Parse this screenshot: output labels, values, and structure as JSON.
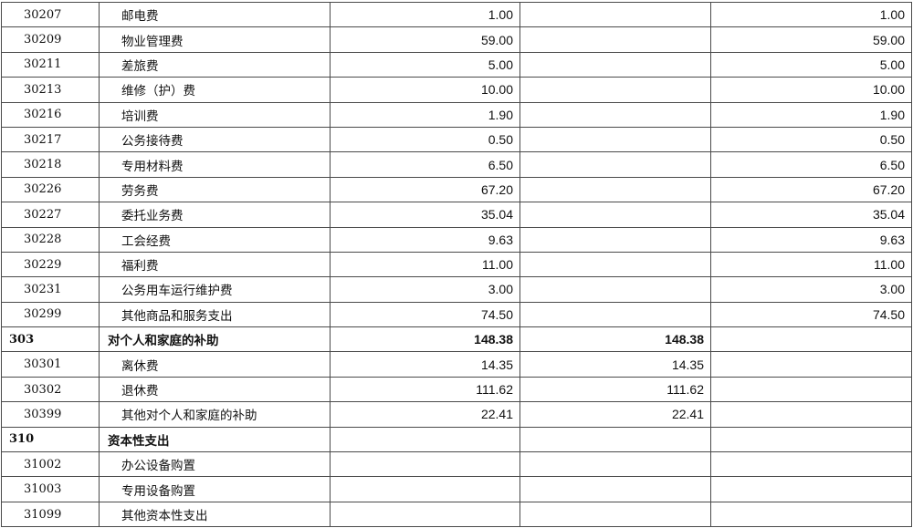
{
  "rows": [
    {
      "code": "30207",
      "name": "邮电费",
      "c3": "1.00",
      "c4": "",
      "c5": "1.00",
      "bold": false
    },
    {
      "code": "30209",
      "name": "物业管理费",
      "c3": "59.00",
      "c4": "",
      "c5": "59.00",
      "bold": false
    },
    {
      "code": "30211",
      "name": "差旅费",
      "c3": "5.00",
      "c4": "",
      "c5": "5.00",
      "bold": false
    },
    {
      "code": "30213",
      "name": "维修（护）费",
      "c3": "10.00",
      "c4": "",
      "c5": "10.00",
      "bold": false
    },
    {
      "code": "30216",
      "name": "培训费",
      "c3": "1.90",
      "c4": "",
      "c5": "1.90",
      "bold": false
    },
    {
      "code": "30217",
      "name": "公务接待费",
      "c3": "0.50",
      "c4": "",
      "c5": "0.50",
      "bold": false
    },
    {
      "code": "30218",
      "name": "专用材料费",
      "c3": "6.50",
      "c4": "",
      "c5": "6.50",
      "bold": false
    },
    {
      "code": "30226",
      "name": "劳务费",
      "c3": "67.20",
      "c4": "",
      "c5": "67.20",
      "bold": false
    },
    {
      "code": "30227",
      "name": "委托业务费",
      "c3": "35.04",
      "c4": "",
      "c5": "35.04",
      "bold": false
    },
    {
      "code": "30228",
      "name": "工会经费",
      "c3": "9.63",
      "c4": "",
      "c5": "9.63",
      "bold": false
    },
    {
      "code": "30229",
      "name": "福利费",
      "c3": "11.00",
      "c4": "",
      "c5": "11.00",
      "bold": false
    },
    {
      "code": "30231",
      "name": "公务用车运行维护费",
      "c3": "3.00",
      "c4": "",
      "c5": "3.00",
      "bold": false
    },
    {
      "code": "30299",
      "name": "其他商品和服务支出",
      "c3": "74.50",
      "c4": "",
      "c5": "74.50",
      "bold": false
    },
    {
      "code": "303",
      "name": "对个人和家庭的补助",
      "c3": "148.38",
      "c4": "148.38",
      "c5": "",
      "bold": true
    },
    {
      "code": "30301",
      "name": "离休费",
      "c3": "14.35",
      "c4": "14.35",
      "c5": "",
      "bold": false
    },
    {
      "code": "30302",
      "name": "退休费",
      "c3": "111.62",
      "c4": "111.62",
      "c5": "",
      "bold": false
    },
    {
      "code": "30399",
      "name": "其他对个人和家庭的补助",
      "c3": "22.41",
      "c4": "22.41",
      "c5": "",
      "bold": false
    },
    {
      "code": "310",
      "name": "资本性支出",
      "c3": "",
      "c4": "",
      "c5": "",
      "bold": true
    },
    {
      "code": "31002",
      "name": "办公设备购置",
      "c3": "",
      "c4": "",
      "c5": "",
      "bold": false
    },
    {
      "code": "31003",
      "name": "专用设备购置",
      "c3": "",
      "c4": "",
      "c5": "",
      "bold": false
    },
    {
      "code": "31099",
      "name": "其他资本性支出",
      "c3": "",
      "c4": "",
      "c5": "",
      "bold": false
    }
  ]
}
